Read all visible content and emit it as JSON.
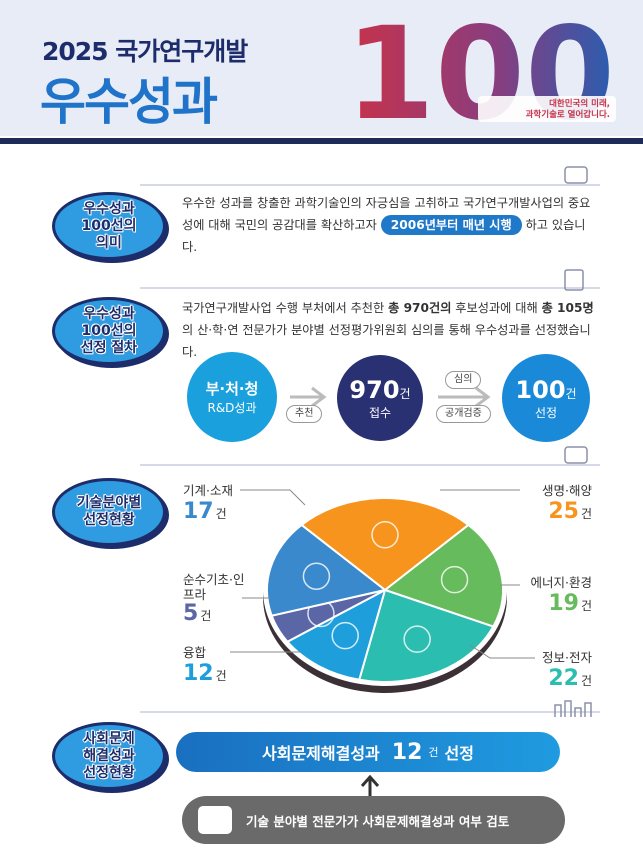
{
  "header": {
    "title_line1": "2025 국가연구개발",
    "title_line2": "우수성과",
    "emblem": "100",
    "slogan": [
      "대한민국의 미래,",
      "과학기술로 열어갑니다."
    ]
  },
  "sections": [
    {
      "badge": [
        "우수성과",
        "100선의",
        "의미"
      ],
      "text_before": "우수한 성과를 창출한 과학기술인의 자긍심을 고취하고 국가연구개발사업의 중요성에 대해 국민의 공감대를 확산하고자",
      "highlight": "2006년부터 매년 시행",
      "text_after": "하고 있습니다."
    },
    {
      "badge": [
        "우수성과",
        "100선의",
        "선정 절차"
      ],
      "paragraph": [
        {
          "text": "국가연구개발사업 수행 부처에서 추천한 ",
          "bold": false
        },
        {
          "text": "총 970건의",
          "bold": true
        },
        {
          "text": " 후보성과에 대해 ",
          "bold": false
        },
        {
          "text": "총 105명",
          "bold": true
        },
        {
          "text": "의 산·학·연 전문가가 분야별 선정평가위원회 심의를 통해 우수성과를 선정했습니다.",
          "bold": false
        }
      ],
      "flow": {
        "source": [
          "부·처·청",
          "R&D성과"
        ],
        "step1": "추천",
        "received": {
          "count": 970,
          "unit": "건",
          "label": "접수"
        },
        "step2": [
          "심의",
          "공개검증"
        ],
        "selected": {
          "count": 100,
          "unit": "건",
          "label": "선정"
        }
      }
    },
    {
      "badge": [
        "기술분야별",
        "선정현황"
      ]
    },
    {
      "badge": [
        "사회문제",
        "해결성과",
        "선정현황"
      ],
      "result": {
        "label": "사회문제해결성과",
        "count": 12,
        "unit": "건",
        "suffix": "선정"
      },
      "review": "기술 분야별 전문가가 사회문제해결성과 여부 검토"
    }
  ],
  "chart_data": {
    "type": "pie",
    "categories": [
      "생명·해양",
      "에너지·환경",
      "정보·전자",
      "융합",
      "순수기초·인프라",
      "기계·소재"
    ],
    "values": [
      25,
      19,
      22,
      12,
      5,
      17
    ],
    "colors": [
      "#f7941d",
      "#66bb5c",
      "#2cbdb1",
      "#1e9fdc",
      "#5b66a6",
      "#3a89cc"
    ],
    "unit": "건"
  }
}
